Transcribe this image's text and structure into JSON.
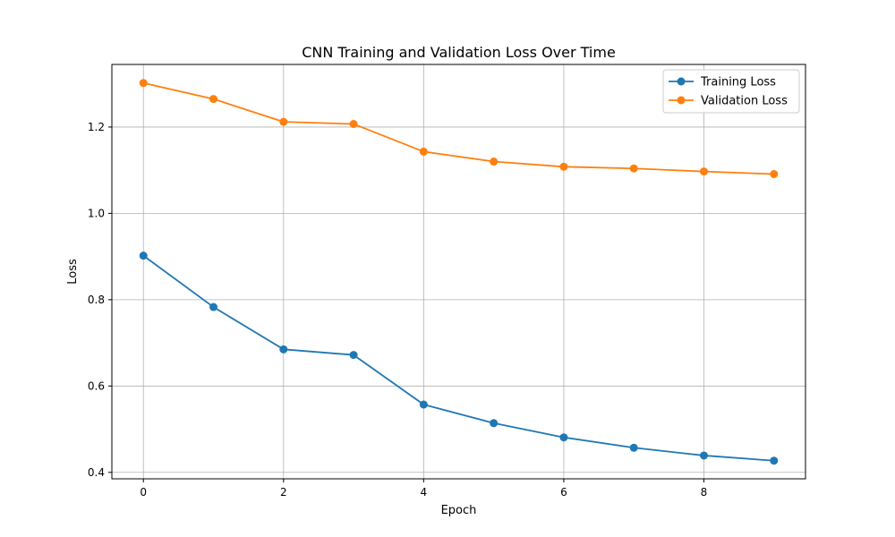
{
  "chart_data": {
    "type": "line",
    "title": "CNN Training and Validation Loss Over Time",
    "xlabel": "Epoch",
    "ylabel": "Loss",
    "x": [
      0,
      1,
      2,
      3,
      4,
      5,
      6,
      7,
      8,
      9
    ],
    "xlim": [
      -0.45,
      9.45
    ],
    "ylim": [
      0.385,
      1.345
    ],
    "xticks": [
      0,
      2,
      4,
      6,
      8
    ],
    "yticks": [
      0.4,
      0.6,
      0.8,
      1.0,
      1.2
    ],
    "xtick_labels": [
      "0",
      "2",
      "4",
      "6",
      "8"
    ],
    "ytick_labels": [
      "0.4",
      "0.6",
      "0.8",
      "1.0",
      "1.2"
    ],
    "grid": true,
    "legend_position": "top-right",
    "series": [
      {
        "name": "Training Loss",
        "color": "#1f77b4",
        "marker": "circle",
        "values": [
          0.902,
          0.783,
          0.685,
          0.672,
          0.557,
          0.514,
          0.481,
          0.457,
          0.439,
          0.427
        ]
      },
      {
        "name": "Validation Loss",
        "color": "#ff7f0e",
        "marker": "circle",
        "values": [
          1.302,
          1.265,
          1.212,
          1.207,
          1.143,
          1.12,
          1.108,
          1.104,
          1.097,
          1.091
        ]
      }
    ]
  }
}
